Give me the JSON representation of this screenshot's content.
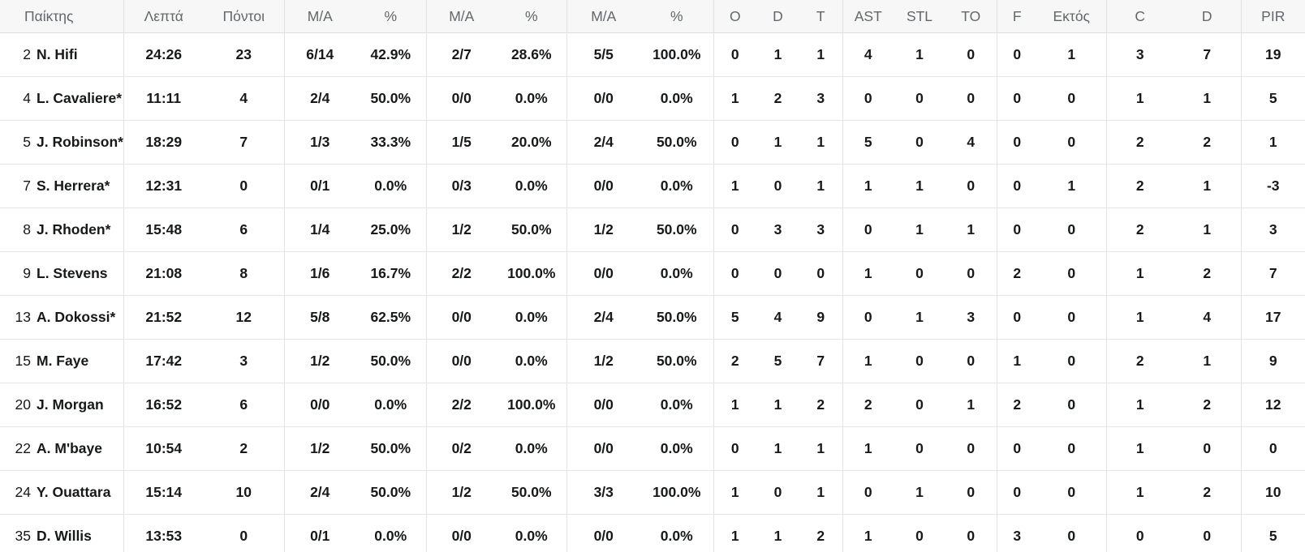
{
  "table": {
    "columns": [
      {
        "key": "player",
        "label": "Παίκτης"
      },
      {
        "key": "minutes",
        "label": "Λεπτά"
      },
      {
        "key": "points",
        "label": "Πόντοι"
      },
      {
        "key": "fg2-ma",
        "label": "M/A"
      },
      {
        "key": "fg2-pct",
        "label": "%"
      },
      {
        "key": "fg3-ma",
        "label": "M/A"
      },
      {
        "key": "fg3-pct",
        "label": "%"
      },
      {
        "key": "ft-ma",
        "label": "M/A"
      },
      {
        "key": "ft-pct",
        "label": "%"
      },
      {
        "key": "reb-o",
        "label": "O"
      },
      {
        "key": "reb-d",
        "label": "D"
      },
      {
        "key": "reb-t",
        "label": "T"
      },
      {
        "key": "ast",
        "label": "AST"
      },
      {
        "key": "stl",
        "label": "STL"
      },
      {
        "key": "to",
        "label": "TO"
      },
      {
        "key": "f",
        "label": "F"
      },
      {
        "key": "ektos",
        "label": "Εκτός"
      },
      {
        "key": "c",
        "label": "C"
      },
      {
        "key": "d",
        "label": "D"
      },
      {
        "key": "pir",
        "label": "PIR"
      }
    ],
    "rows": [
      {
        "number": "2",
        "name": "N. Hifi",
        "stats": [
          "24:26",
          "23",
          "6/14",
          "42.9%",
          "2/7",
          "28.6%",
          "5/5",
          "100.0%",
          "0",
          "1",
          "1",
          "4",
          "1",
          "0",
          "0",
          "1",
          "3",
          "7",
          "19"
        ]
      },
      {
        "number": "4",
        "name": "L. Cavaliere*",
        "stats": [
          "11:11",
          "4",
          "2/4",
          "50.0%",
          "0/0",
          "0.0%",
          "0/0",
          "0.0%",
          "1",
          "2",
          "3",
          "0",
          "0",
          "0",
          "0",
          "0",
          "1",
          "1",
          "5"
        ]
      },
      {
        "number": "5",
        "name": "J. Robinson*",
        "stats": [
          "18:29",
          "7",
          "1/3",
          "33.3%",
          "1/5",
          "20.0%",
          "2/4",
          "50.0%",
          "0",
          "1",
          "1",
          "5",
          "0",
          "4",
          "0",
          "0",
          "2",
          "2",
          "1"
        ]
      },
      {
        "number": "7",
        "name": "S. Herrera*",
        "stats": [
          "12:31",
          "0",
          "0/1",
          "0.0%",
          "0/3",
          "0.0%",
          "0/0",
          "0.0%",
          "1",
          "0",
          "1",
          "1",
          "1",
          "0",
          "0",
          "1",
          "2",
          "1",
          "-3"
        ]
      },
      {
        "number": "8",
        "name": "J. Rhoden*",
        "stats": [
          "15:48",
          "6",
          "1/4",
          "25.0%",
          "1/2",
          "50.0%",
          "1/2",
          "50.0%",
          "0",
          "3",
          "3",
          "0",
          "1",
          "1",
          "0",
          "0",
          "2",
          "1",
          "3"
        ]
      },
      {
        "number": "9",
        "name": "L. Stevens",
        "stats": [
          "21:08",
          "8",
          "1/6",
          "16.7%",
          "2/2",
          "100.0%",
          "0/0",
          "0.0%",
          "0",
          "0",
          "0",
          "1",
          "0",
          "0",
          "2",
          "0",
          "1",
          "2",
          "7"
        ]
      },
      {
        "number": "13",
        "name": "A. Dokossi*",
        "stats": [
          "21:52",
          "12",
          "5/8",
          "62.5%",
          "0/0",
          "0.0%",
          "2/4",
          "50.0%",
          "5",
          "4",
          "9",
          "0",
          "1",
          "3",
          "0",
          "0",
          "1",
          "4",
          "17"
        ]
      },
      {
        "number": "15",
        "name": "M. Faye",
        "stats": [
          "17:42",
          "3",
          "1/2",
          "50.0%",
          "0/0",
          "0.0%",
          "1/2",
          "50.0%",
          "2",
          "5",
          "7",
          "1",
          "0",
          "0",
          "1",
          "0",
          "2",
          "1",
          "9"
        ]
      },
      {
        "number": "20",
        "name": "J. Morgan",
        "stats": [
          "16:52",
          "6",
          "0/0",
          "0.0%",
          "2/2",
          "100.0%",
          "0/0",
          "0.0%",
          "1",
          "1",
          "2",
          "2",
          "0",
          "1",
          "2",
          "0",
          "1",
          "2",
          "12"
        ]
      },
      {
        "number": "22",
        "name": "A. M'baye",
        "stats": [
          "10:54",
          "2",
          "1/2",
          "50.0%",
          "0/2",
          "0.0%",
          "0/0",
          "0.0%",
          "0",
          "1",
          "1",
          "1",
          "0",
          "0",
          "0",
          "0",
          "1",
          "0",
          "0"
        ]
      },
      {
        "number": "24",
        "name": "Y. Ouattara",
        "stats": [
          "15:14",
          "10",
          "2/4",
          "50.0%",
          "1/2",
          "50.0%",
          "3/3",
          "100.0%",
          "1",
          "0",
          "1",
          "0",
          "1",
          "0",
          "0",
          "0",
          "1",
          "2",
          "10"
        ]
      },
      {
        "number": "35",
        "name": "D. Willis",
        "stats": [
          "13:53",
          "0",
          "0/1",
          "0.0%",
          "0/0",
          "0.0%",
          "0/0",
          "0.0%",
          "1",
          "1",
          "2",
          "1",
          "0",
          "0",
          "3",
          "0",
          "0",
          "0",
          "5"
        ]
      }
    ]
  },
  "colors": {
    "header_bg": "#f7f7f7",
    "header_text": "#63666b",
    "body_text": "#17181a",
    "border": "#e5e5e7"
  }
}
